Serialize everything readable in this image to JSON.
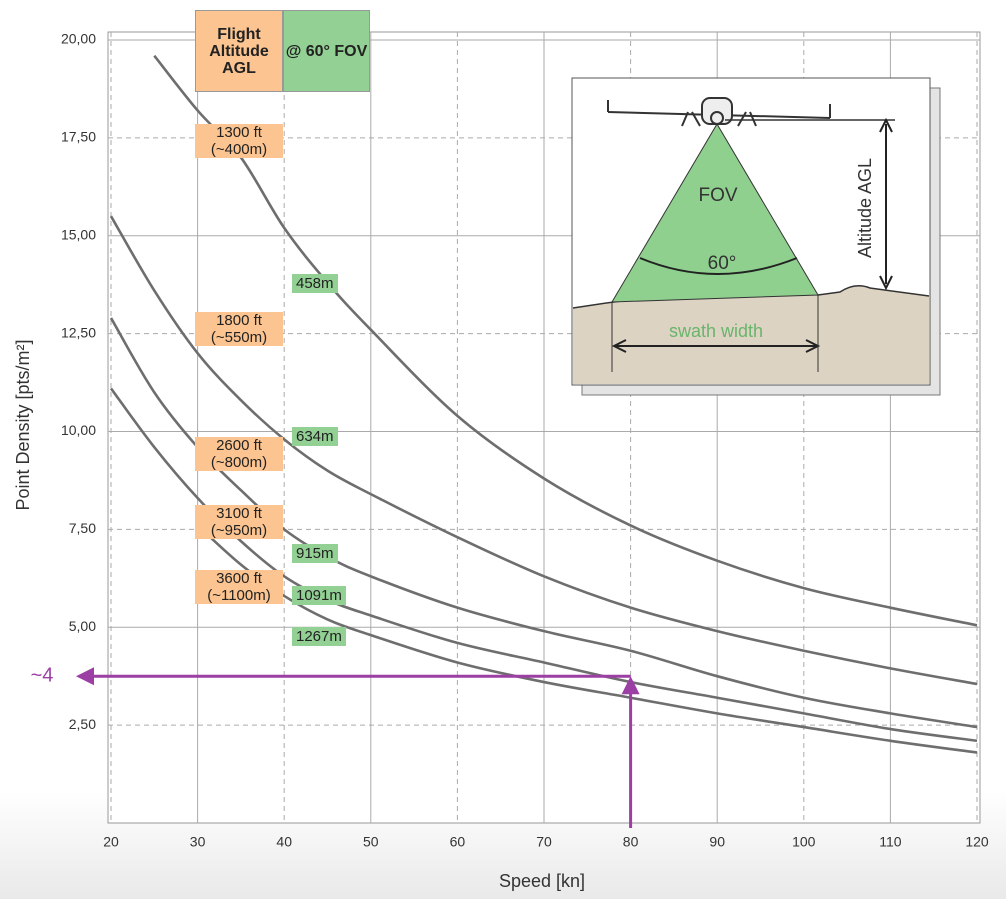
{
  "chart_data": {
    "type": "line",
    "header": [
      "Flight Altitude AGL",
      "@ 60° FOV"
    ],
    "xlabel": "Speed [kn]",
    "ylabel": "Point Density [pts/m²]",
    "x": [
      20,
      25,
      30,
      35,
      40,
      45,
      50,
      60,
      70,
      80,
      90,
      100,
      110,
      120
    ],
    "series": [
      {
        "name": "1300 ft (~400m)",
        "swath": "458m",
        "color": "#6e6e6e",
        "values": [
          null,
          19.6,
          18.2,
          17.0,
          15.2,
          13.8,
          12.6,
          10.4,
          8.8,
          7.6,
          6.7,
          6.0,
          5.5,
          5.05
        ]
      },
      {
        "name": "1800 ft (~550m)",
        "swath": "634m",
        "color": "#6e6e6e",
        "values": [
          15.5,
          13.6,
          12.0,
          10.8,
          9.8,
          9.0,
          8.4,
          7.3,
          6.3,
          5.5,
          4.9,
          4.4,
          3.95,
          3.55
        ]
      },
      {
        "name": "2600 ft (~800m)",
        "swath": "915m",
        "color": "#6e6e6e",
        "values": [
          12.9,
          11.0,
          9.6,
          8.5,
          7.5,
          6.8,
          6.3,
          5.5,
          4.9,
          4.4,
          3.75,
          3.2,
          2.8,
          2.45
        ]
      },
      {
        "name": "3100 ft (~950m)",
        "swath": "1091m",
        "color": "#6e6e6e",
        "values": [
          11.1,
          9.6,
          8.3,
          7.2,
          6.3,
          5.7,
          5.3,
          4.6,
          4.1,
          3.6,
          3.2,
          2.8,
          2.4,
          2.1
        ]
      },
      {
        "name": "3600 ft (~1100m)",
        "swath": "1267m",
        "color": "#6e6e6e",
        "values": [
          null,
          null,
          7.6,
          6.6,
          5.8,
          5.2,
          4.8,
          4.1,
          3.6,
          3.2,
          2.8,
          2.45,
          2.1,
          1.8
        ]
      }
    ],
    "xlim": [
      20,
      120
    ],
    "xticks": [
      20,
      30,
      40,
      50,
      60,
      70,
      80,
      90,
      100,
      110,
      120
    ],
    "ylim": [
      0,
      20
    ],
    "yticks": [
      {
        "value": 2.5,
        "label": "2,50"
      },
      {
        "value": 5,
        "label": "5,00"
      },
      {
        "value": 7.5,
        "label": "7,50"
      },
      {
        "value": 10,
        "label": "10,00"
      },
      {
        "value": 12.5,
        "label": "12,50"
      },
      {
        "value": 15,
        "label": "15,00"
      },
      {
        "value": 17.5,
        "label": "17,50"
      },
      {
        "value": 20,
        "label": "20,00"
      }
    ],
    "grid": true,
    "annotation": {
      "text": "~4",
      "x": 80,
      "y": 3.75,
      "color": "#9b3fa5"
    },
    "inset": {
      "fov": "FOV",
      "angle": "60°",
      "swath": "swath width",
      "altitude": "Altitude AGL"
    }
  }
}
